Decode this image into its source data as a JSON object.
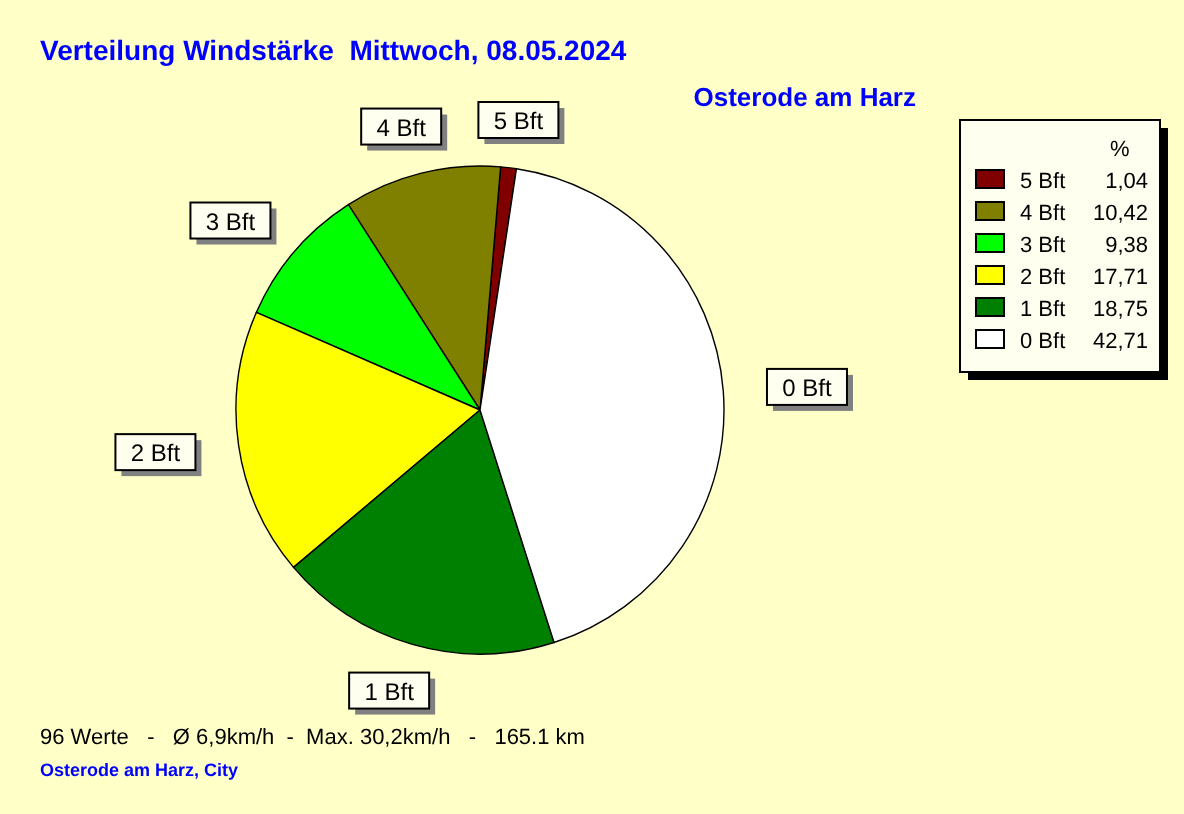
{
  "chart_data": {
    "type": "pie",
    "title": "Verteilung Windstärke  Mittwoch, 08.05.2024",
    "subtitle": "Osterode am Harz",
    "legend_title": "%",
    "legend": "top right",
    "categories": [
      "5 Bft",
      "4 Bft",
      "3 Bft",
      "2 Bft",
      "1 Bft",
      "0 Bft"
    ],
    "values": [
      1.04,
      10.42,
      9.38,
      17.71,
      18.75,
      42.71
    ],
    "value_labels": [
      "1,04",
      "10,42",
      "9,38",
      "17,71",
      "18,75",
      "42,71"
    ],
    "colors": [
      "#800000",
      "#808000",
      "#00ff00",
      "#ffff00",
      "#008000",
      "#ffffff"
    ],
    "annotations": [
      "96 Werte   -   Ø 6,9km/h  -  Max. 30,2km/h   -   165.1 km",
      "Osterode am Harz, City"
    ]
  }
}
